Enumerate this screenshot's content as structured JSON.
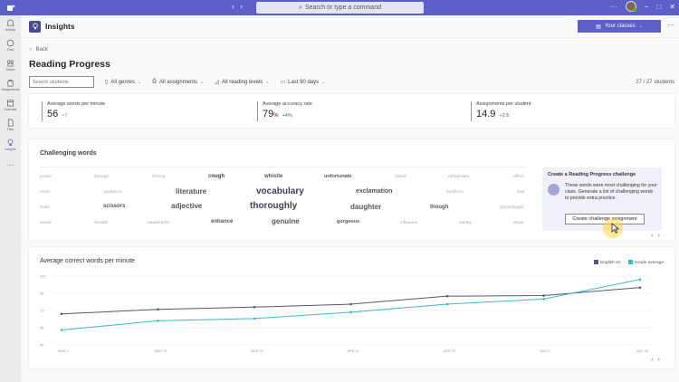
{
  "titlebar": {
    "search_placeholder": "Search or type a command",
    "more_label": "···",
    "minimize": "−",
    "maximize": "□",
    "close": "✕"
  },
  "rail": {
    "items": [
      {
        "label": "Activity",
        "icon": "bell-icon"
      },
      {
        "label": "Chat",
        "icon": "chat-icon"
      },
      {
        "label": "Teams",
        "icon": "teams-icon"
      },
      {
        "label": "Assignments",
        "icon": "assignments-icon"
      },
      {
        "label": "Calendar",
        "icon": "calendar-icon"
      },
      {
        "label": "Files",
        "icon": "file-icon"
      },
      {
        "label": "Insights",
        "icon": "lightbulb-icon",
        "active": true
      }
    ],
    "more": "···"
  },
  "app": {
    "title": "Insights",
    "your_classes": "Your classes",
    "more": "···"
  },
  "page": {
    "back": "Back",
    "title": "Reading Progress",
    "search_placeholder": "Search students",
    "filters": [
      "All genres",
      "All assignments",
      "All reading levels",
      "Last 90 days"
    ],
    "student_count": "27 / 27 students"
  },
  "stats": [
    {
      "label": "Average words per minute",
      "value": "56",
      "unit": "",
      "delta": "+7"
    },
    {
      "label": "Average accuracy rate",
      "value": "79",
      "unit": "%",
      "delta": "+4%"
    },
    {
      "label": "Assignments per student",
      "value": "14.9",
      "unit": "",
      "delta": "+2.5"
    }
  ],
  "challenging_words": {
    "title": "Challenging words",
    "rows": [
      [
        "praise",
        "through",
        "shrimp",
        "cough",
        "whistle",
        "unfortunate",
        "island",
        "refrigerator",
        "affect"
      ],
      [
        "order",
        "appliance",
        "literature",
        "vocabulary",
        "exclamation",
        "landform",
        "free"
      ],
      [
        "trade",
        "scissors",
        "adjective",
        "thoroughly",
        "daughter",
        "though",
        "psychologist"
      ],
      [
        "would",
        "should",
        "catastrophe",
        "enhance",
        "genuine",
        "gorgeous",
        "influence",
        "variety",
        "siege"
      ]
    ]
  },
  "challenge_card": {
    "title": "Create a Reading Progress challenge",
    "description": "These words were most challenging for your class. Generate a list of challenging words to provide extra practice.",
    "button": "Create challenge assignment"
  },
  "feedback": {
    "like": "👍",
    "dislike": "👎"
  },
  "chart_data": {
    "type": "line",
    "title": "Average correct words per minute",
    "xlabel": "",
    "ylabel": "",
    "x": [
      "MAR 1",
      "MAR 15",
      "MAR 29",
      "APR 11",
      "APR 25",
      "MAY 9",
      "MAY 23"
    ],
    "yticks": [
      40,
      55,
      70,
      85,
      100
    ],
    "ylim": [
      40,
      100
    ],
    "grid": true,
    "legend_position": "top-right",
    "series": [
      {
        "name": "English 2A",
        "color": "#5c5470",
        "values": [
          67,
          71,
          73,
          75.5,
          82.5,
          83,
          90
        ]
      },
      {
        "name": "Grade average",
        "color": "#3cb8c4",
        "values": [
          53,
          61,
          63,
          68.5,
          75.5,
          80,
          97
        ]
      }
    ]
  }
}
